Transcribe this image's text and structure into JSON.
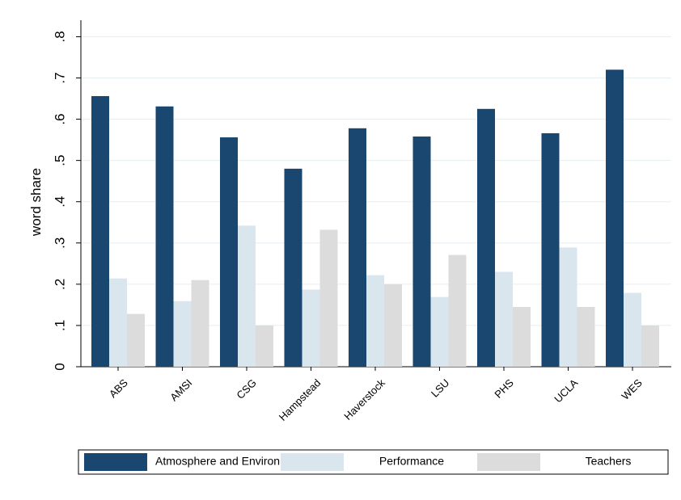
{
  "chart_data": {
    "type": "bar",
    "y_label": "word share",
    "categories": [
      "ABS",
      "AMSI",
      "CSG",
      "Hampstead",
      "Haverstock",
      "LSU",
      "PHS",
      "UCLA",
      "WES"
    ],
    "series": [
      {
        "name": "Atmosphere and Environment",
        "color": "#1a476f",
        "values": [
          0.656,
          0.631,
          0.556,
          0.48,
          0.578,
          0.558,
          0.625,
          0.566,
          0.72
        ]
      },
      {
        "name": "Performance",
        "color": "#d9e6ee",
        "values": [
          0.214,
          0.159,
          0.342,
          0.187,
          0.222,
          0.169,
          0.23,
          0.289,
          0.179
        ]
      },
      {
        "name": "Teachers",
        "color": "#dcdcdc",
        "values": [
          0.128,
          0.21,
          0.1,
          0.332,
          0.2,
          0.271,
          0.145,
          0.145,
          0.1
        ]
      }
    ],
    "ylim": [
      0,
      0.84
    ],
    "yticks": [
      {
        "value": 0,
        "label": "0"
      },
      {
        "value": 0.1,
        "label": ".1"
      },
      {
        "value": 0.2,
        "label": ".2"
      },
      {
        "value": 0.3,
        "label": ".3"
      },
      {
        "value": 0.4,
        "label": ".4"
      },
      {
        "value": 0.5,
        "label": ".5"
      },
      {
        "value": 0.6,
        "label": ".6"
      },
      {
        "value": 0.7,
        "label": ".7"
      },
      {
        "value": 0.8,
        "label": ".8"
      }
    ],
    "grid": true
  }
}
